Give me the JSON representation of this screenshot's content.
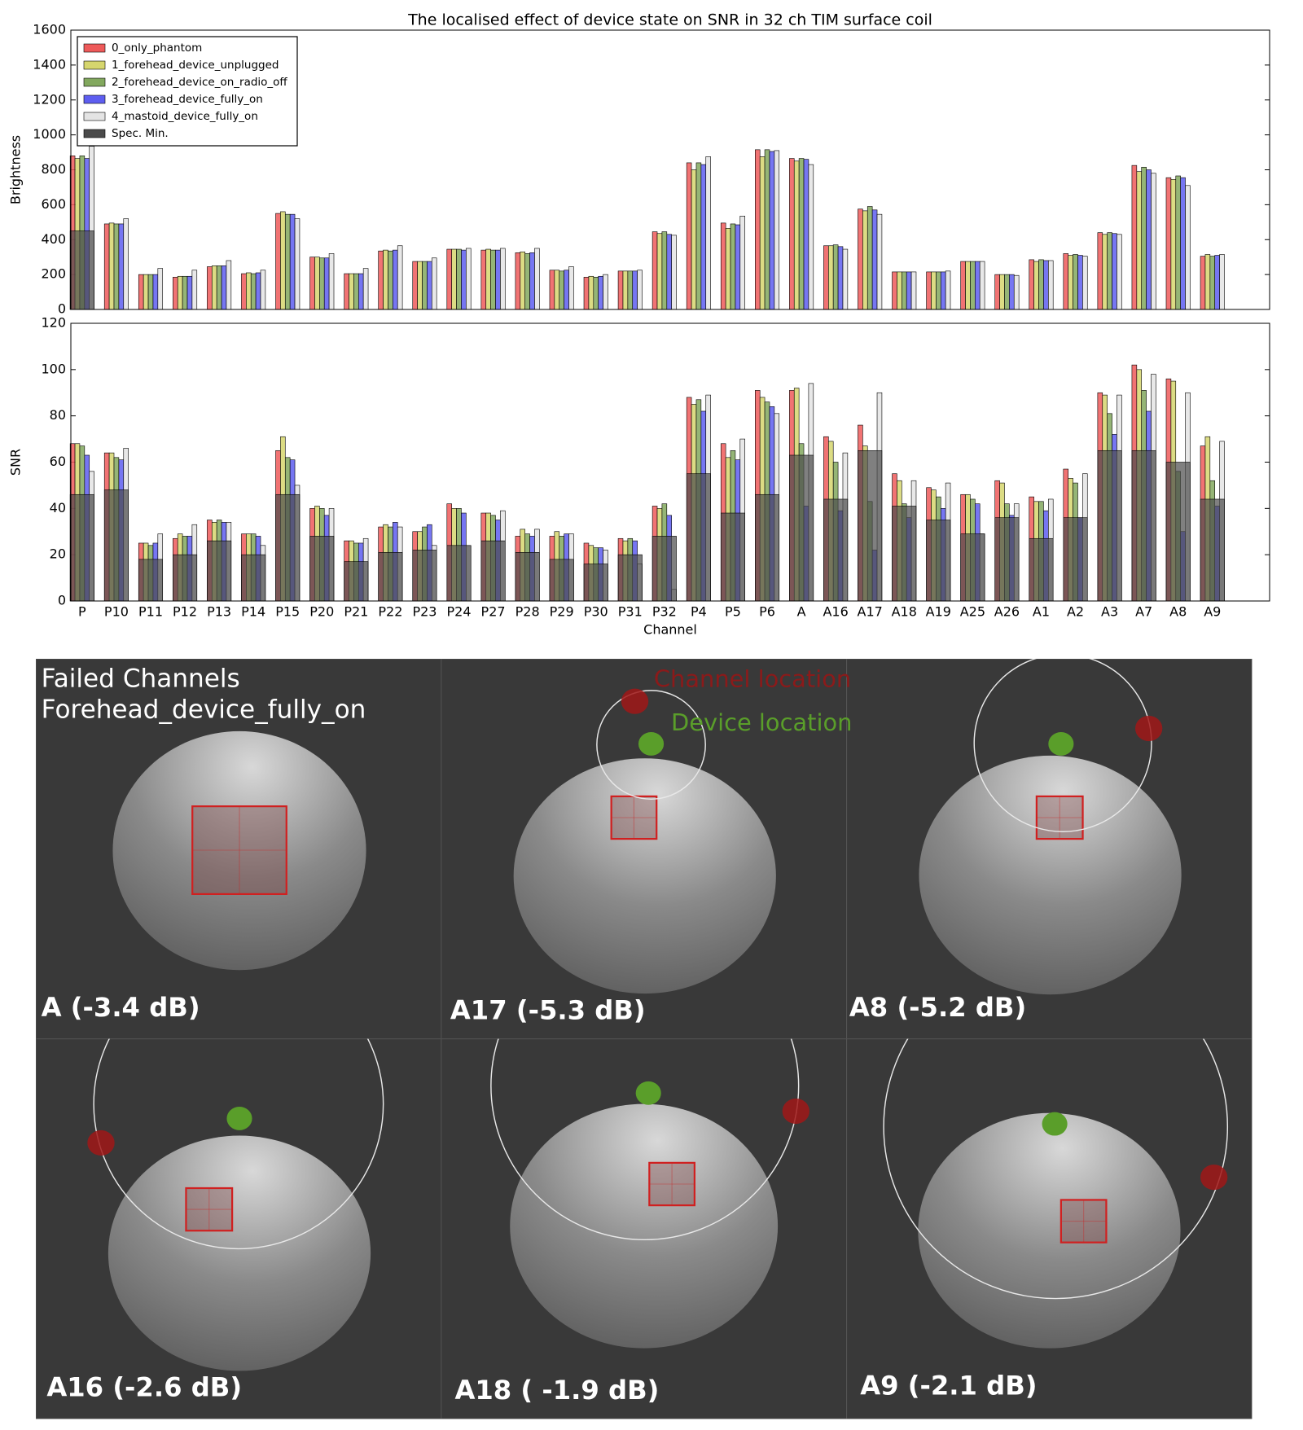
{
  "chart_data": [
    {
      "type": "bar",
      "title": "The localised effect of device state on SNR in 32 ch TIM surface coil",
      "y_label": "Brightness",
      "ylim": [
        0,
        1600
      ],
      "yticks": [
        0,
        200,
        400,
        600,
        800,
        1000,
        1200,
        1400,
        1600
      ],
      "legend": "upper left",
      "series": [
        {
          "name": "0_only_phantom",
          "color": "#ee5a5a",
          "values": [
            880,
            490,
            200,
            185,
            245,
            205,
            550,
            300,
            205,
            335,
            275,
            345,
            340,
            325,
            225,
            185,
            220,
            445,
            840,
            495,
            915,
            865,
            365,
            575,
            215,
            215,
            275,
            200,
            285,
            320,
            440,
            825,
            755,
            305
          ]
        },
        {
          "name": "1_forehead_device_unplugged",
          "color": "#d6d66e",
          "values": [
            865,
            495,
            200,
            190,
            250,
            210,
            560,
            300,
            205,
            340,
            275,
            345,
            345,
            330,
            225,
            190,
            220,
            435,
            800,
            465,
            875,
            850,
            365,
            565,
            215,
            215,
            275,
            200,
            275,
            310,
            430,
            790,
            745,
            315
          ]
        },
        {
          "name": "2_forehead_device_on_radio_off",
          "color": "#82a85e",
          "values": [
            880,
            490,
            200,
            190,
            250,
            205,
            545,
            295,
            205,
            335,
            275,
            345,
            340,
            320,
            220,
            185,
            220,
            445,
            840,
            490,
            915,
            865,
            370,
            590,
            215,
            215,
            275,
            200,
            285,
            315,
            440,
            815,
            765,
            305
          ]
        },
        {
          "name": "3_forehead_device_fully_on",
          "color": "#5e5ef0",
          "values": [
            865,
            490,
            200,
            190,
            250,
            210,
            545,
            295,
            205,
            340,
            275,
            340,
            340,
            325,
            225,
            190,
            220,
            430,
            830,
            485,
            905,
            860,
            360,
            570,
            215,
            215,
            275,
            200,
            280,
            310,
            435,
            800,
            755,
            310
          ]
        },
        {
          "name": "4_mastoid_device_fully_on",
          "color": "#e4e4e4",
          "values": [
            935,
            520,
            235,
            225,
            280,
            225,
            520,
            320,
            235,
            365,
            295,
            350,
            350,
            350,
            245,
            200,
            225,
            425,
            875,
            535,
            910,
            830,
            345,
            545,
            215,
            220,
            275,
            195,
            280,
            305,
            430,
            780,
            710,
            315
          ]
        },
        {
          "name": "Spec. Min.",
          "color": "#4a4a4a",
          "overlay": true,
          "values": [
            450,
            null,
            null,
            null,
            null,
            null,
            null,
            null,
            null,
            null,
            null,
            null,
            null,
            null,
            null,
            null,
            null,
            null,
            null,
            null,
            null,
            null,
            null,
            null,
            null,
            null,
            null,
            null,
            null,
            null,
            null,
            null,
            null,
            null
          ]
        }
      ]
    },
    {
      "type": "bar",
      "y_label": "SNR",
      "x_label": "Channel",
      "categories": [
        "P",
        "P10",
        "P11",
        "P12",
        "P13",
        "P14",
        "P15",
        "P20",
        "P21",
        "P22",
        "P23",
        "P24",
        "P27",
        "P28",
        "P29",
        "P30",
        "P31",
        "P32",
        "P4",
        "P5",
        "P6",
        "A",
        "A16",
        "A17",
        "A18",
        "A19",
        "A25",
        "A26",
        "A1",
        "A2",
        "A3",
        "A7",
        "A8",
        "A9"
      ],
      "ylim": [
        0,
        120
      ],
      "yticks": [
        0,
        20,
        40,
        60,
        80,
        100,
        120
      ],
      "series": [
        {
          "color": "#ee5a5a",
          "values": [
            68,
            64,
            25,
            27,
            35,
            29,
            65,
            40,
            26,
            32,
            30,
            42,
            38,
            28,
            28,
            25,
            27,
            41,
            88,
            68,
            91,
            91,
            71,
            76,
            55,
            49,
            46,
            52,
            45,
            57,
            90,
            102,
            96,
            67
          ]
        },
        {
          "color": "#d6d66e",
          "values": [
            68,
            64,
            25,
            29,
            34,
            29,
            71,
            41,
            26,
            33,
            30,
            40,
            38,
            31,
            30,
            24,
            26,
            40,
            85,
            62,
            88,
            92,
            69,
            67,
            52,
            48,
            46,
            51,
            43,
            53,
            89,
            100,
            95,
            71
          ]
        },
        {
          "color": "#82a85e",
          "values": [
            67,
            62,
            24,
            28,
            35,
            29,
            62,
            40,
            25,
            32,
            32,
            40,
            37,
            29,
            28,
            23,
            27,
            42,
            87,
            65,
            86,
            68,
            60,
            43,
            42,
            45,
            44,
            42,
            43,
            51,
            81,
            91,
            56,
            52
          ]
        },
        {
          "color": "#5e5ef0",
          "values": [
            63,
            61,
            25,
            28,
            34,
            28,
            61,
            37,
            25,
            34,
            33,
            38,
            35,
            28,
            29,
            23,
            26,
            37,
            82,
            61,
            84,
            41,
            39,
            22,
            36,
            40,
            42,
            37,
            39,
            36,
            72,
            82,
            30,
            41
          ]
        },
        {
          "color": "#e4e4e4",
          "values": [
            56,
            66,
            29,
            33,
            34,
            24,
            50,
            40,
            27,
            32,
            24,
            24,
            39,
            31,
            29,
            22,
            16,
            5,
            89,
            70,
            81,
            94,
            64,
            90,
            52,
            51,
            29,
            42,
            44,
            55,
            89,
            98,
            90,
            69
          ]
        },
        {
          "color": "#4a4a4a",
          "overlay": true,
          "values": [
            46,
            48,
            18,
            20,
            26,
            20,
            46,
            28,
            17,
            21,
            22,
            24,
            26,
            21,
            18,
            16,
            20,
            28,
            55,
            38,
            46,
            63,
            44,
            65,
            41,
            35,
            29,
            36,
            27,
            36,
            65,
            65,
            60,
            44
          ]
        }
      ]
    }
  ],
  "panel": {
    "title": [
      "Failed Channels",
      "Forehead_device_fully_on"
    ],
    "legend": {
      "channel": "Channel location",
      "device": "Device location"
    },
    "tiles": [
      "A (-3.4 dB)",
      "A17 (-5.3 dB)",
      "A8 (-5.2 dB)",
      "A16 (-2.6 dB)",
      "A18 ( -1.9 dB)",
      "A9 (-2.1 dB)"
    ]
  }
}
